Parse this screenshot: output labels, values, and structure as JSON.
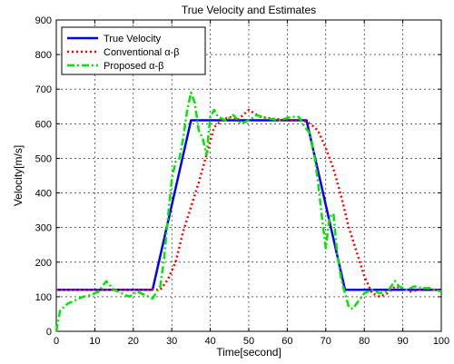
{
  "chart_data": {
    "type": "line",
    "title": "True Velocity and Estimates",
    "xlabel": "Time[second]",
    "ylabel": "Velocity[m/s]",
    "xlim": [
      0,
      100
    ],
    "ylim": [
      0,
      900
    ],
    "xticks": [
      0,
      10,
      20,
      30,
      40,
      50,
      60,
      70,
      80,
      90,
      100
    ],
    "yticks": [
      0,
      100,
      200,
      300,
      400,
      500,
      600,
      700,
      800,
      900
    ],
    "grid": true,
    "legend_position": "top-left",
    "series": [
      {
        "name": "True Velocity",
        "color": "#0000ff",
        "style": "solid",
        "x": [
          0,
          25,
          35,
          65,
          75,
          100
        ],
        "y": [
          120,
          120,
          610,
          610,
          120,
          120
        ]
      },
      {
        "name": "Conventional α-β",
        "color": "#ff0000",
        "style": "dotted",
        "x": [
          0,
          25,
          27,
          29,
          31,
          33,
          35,
          37,
          39,
          41,
          43,
          45,
          47,
          50,
          53,
          56,
          60,
          64,
          66,
          68,
          70,
          72,
          74,
          76,
          78,
          80,
          82,
          84,
          86,
          88,
          90,
          92,
          94,
          96,
          98,
          100
        ],
        "y": [
          120,
          120,
          120,
          150,
          200,
          290,
          360,
          430,
          510,
          590,
          610,
          620,
          610,
          640,
          620,
          615,
          610,
          610,
          600,
          580,
          530,
          470,
          390,
          300,
          230,
          160,
          110,
          100,
          110,
          130,
          125,
          115,
          120,
          125,
          120,
          120
        ]
      },
      {
        "name": "Proposed α-β",
        "color": "#00e600",
        "style": "dashdot",
        "x": [
          0,
          1,
          3,
          5,
          7,
          9,
          11,
          13,
          15,
          17,
          19,
          21,
          23,
          25,
          27,
          28,
          29,
          30,
          31,
          32,
          33,
          34,
          35,
          36,
          37,
          38,
          39,
          40,
          41,
          42,
          44,
          46,
          48,
          50,
          52,
          55,
          58,
          61,
          63,
          64,
          66,
          67,
          68,
          69,
          70,
          71,
          72,
          73,
          74,
          75,
          76,
          77,
          78,
          80,
          82,
          84,
          86,
          88,
          89,
          91,
          93,
          95,
          97,
          100
        ],
        "y": [
          0,
          60,
          80,
          90,
          100,
          105,
          115,
          145,
          120,
          110,
          100,
          115,
          105,
          95,
          130,
          210,
          330,
          440,
          490,
          500,
          560,
          640,
          690,
          660,
          580,
          560,
          510,
          620,
          640,
          620,
          610,
          625,
          600,
          610,
          625,
          615,
          610,
          620,
          620,
          600,
          570,
          510,
          430,
          330,
          240,
          330,
          340,
          220,
          150,
          110,
          70,
          65,
          80,
          110,
          120,
          110,
          115,
          145,
          130,
          120,
          130,
          125,
          125,
          115
        ]
      }
    ]
  }
}
